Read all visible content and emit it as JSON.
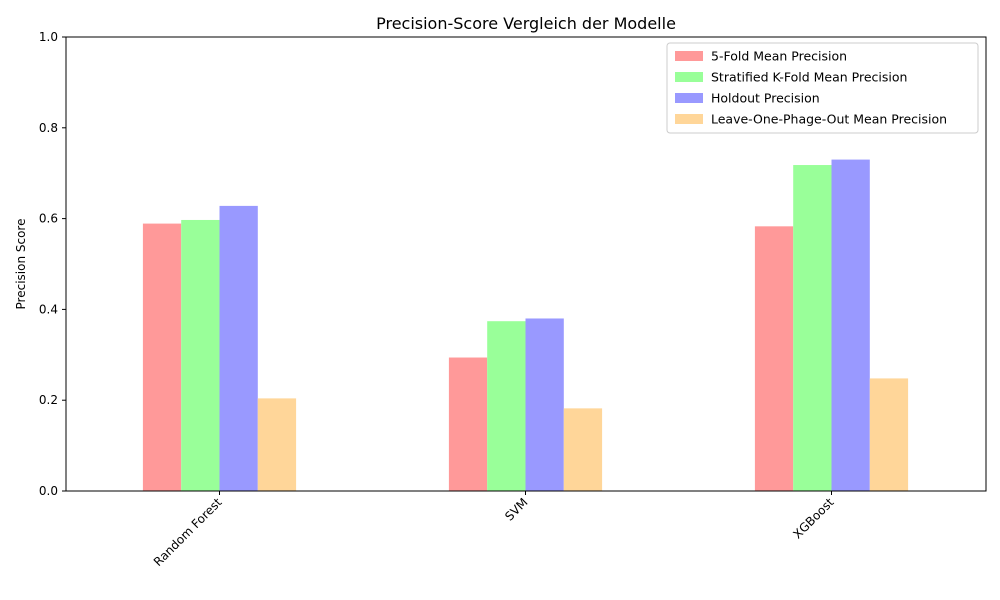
{
  "chart_data": {
    "type": "bar",
    "title": "Precision-Score Vergleich der Modelle",
    "xlabel": "",
    "ylabel": "Precision Score",
    "ylim": [
      0,
      1.0
    ],
    "yticks": [
      "0.0",
      "0.2",
      "0.4",
      "0.6",
      "0.8",
      "1.0"
    ],
    "categories": [
      "Random Forest",
      "SVM",
      "XGBoost"
    ],
    "series": [
      {
        "name": "5-Fold Mean Precision",
        "color": "#ff9999",
        "values": [
          0.589,
          0.294,
          0.583
        ]
      },
      {
        "name": "Stratified K-Fold Mean Precision",
        "color": "#99ff99",
        "values": [
          0.597,
          0.374,
          0.718
        ]
      },
      {
        "name": "Holdout Precision",
        "color": "#9999ff",
        "values": [
          0.628,
          0.38,
          0.73
        ]
      },
      {
        "name": "Leave-One-Phage-Out Mean Precision",
        "color": "#ffd699",
        "values": [
          0.204,
          0.182,
          0.248
        ]
      }
    ],
    "grid": false,
    "legend_position": "top-right"
  }
}
